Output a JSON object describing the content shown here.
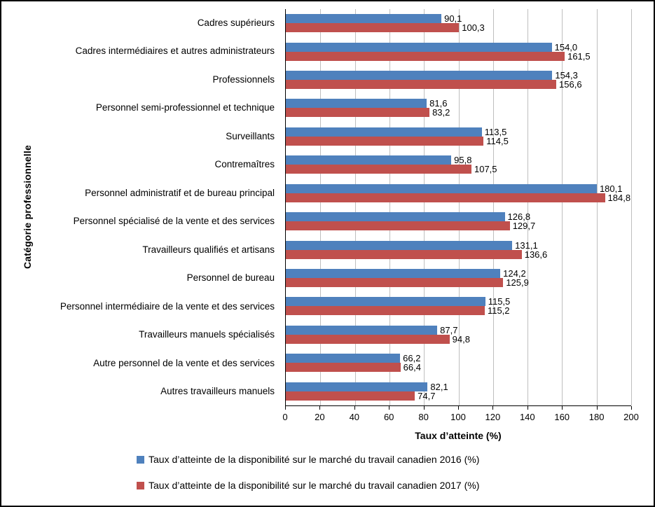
{
  "chart_data": {
    "type": "bar",
    "orientation": "horizontal",
    "title": "",
    "xlabel": "Taux d’atteinte (%)",
    "ylabel": "Catégorie professionnelle",
    "xlim": [
      0,
      200
    ],
    "xticks": [
      0,
      20,
      40,
      60,
      80,
      100,
      120,
      140,
      160,
      180,
      200
    ],
    "grid": true,
    "legend_position": "bottom",
    "categories": [
      "Cadres supérieurs",
      "Cadres intermédiaires et autres administrateurs",
      "Professionnels",
      "Personnel semi-professionnel et technique",
      "Surveillants",
      "Contremaîtres",
      "Personnel administratif et de bureau principal",
      "Personnel spécialisé de la vente et des services",
      "Travailleurs qualifiés et artisans",
      "Personnel de bureau",
      "Personnel intermédiaire de la vente et des services",
      "Travailleurs manuels spécialisés",
      "Autre personnel de la vente et des services",
      "Autres travailleurs manuels"
    ],
    "series": [
      {
        "key": "2016",
        "name": "Taux d’atteinte de la disponibilité sur le marché du travail canadien 2016 (%)",
        "color": "#4F81BD",
        "values": [
          90.1,
          154.0,
          154.3,
          81.6,
          113.5,
          95.8,
          180.1,
          126.8,
          131.1,
          124.2,
          115.5,
          87.7,
          66.2,
          82.1
        ]
      },
      {
        "key": "2017",
        "name": "Taux d’atteinte de la disponibilité sur le marché du travail canadien 2017 (%)",
        "color": "#C0504D",
        "values": [
          100.3,
          161.5,
          156.6,
          83.2,
          114.5,
          107.5,
          184.8,
          129.7,
          136.6,
          125.9,
          115.2,
          94.8,
          66.4,
          74.7
        ]
      }
    ]
  }
}
